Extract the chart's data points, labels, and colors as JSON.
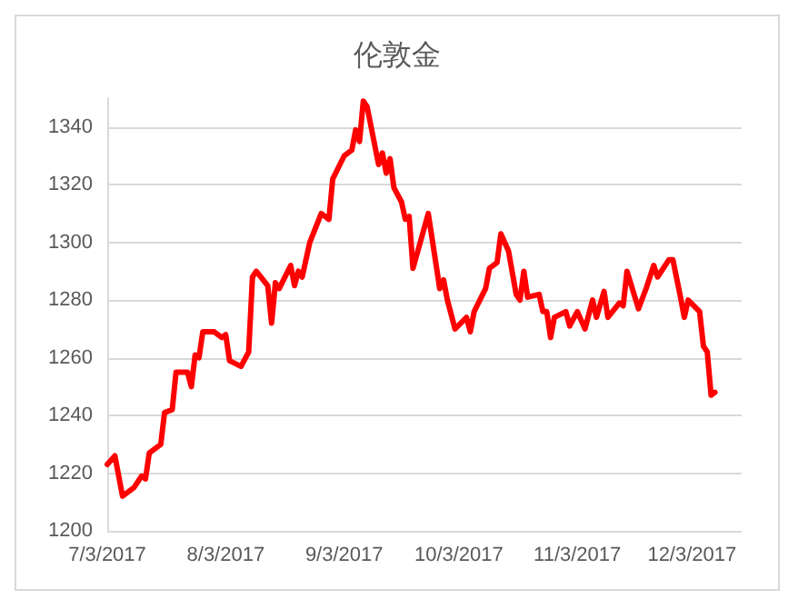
{
  "chart_data": {
    "type": "line",
    "title": "伦敦金",
    "x": [
      "2017-07-03",
      "2017-07-05",
      "2017-07-07",
      "2017-07-10",
      "2017-07-12",
      "2017-07-13",
      "2017-07-14",
      "2017-07-17",
      "2017-07-18",
      "2017-07-20",
      "2017-07-21",
      "2017-07-24",
      "2017-07-25",
      "2017-07-26",
      "2017-07-27",
      "2017-07-28",
      "2017-07-31",
      "2017-08-02",
      "2017-08-03",
      "2017-08-04",
      "2017-08-07",
      "2017-08-09",
      "2017-08-10",
      "2017-08-11",
      "2017-08-14",
      "2017-08-15",
      "2017-08-16",
      "2017-08-17",
      "2017-08-20",
      "2017-08-21",
      "2017-08-22",
      "2017-08-23",
      "2017-08-25",
      "2017-08-28",
      "2017-08-30",
      "2017-08-31",
      "2017-09-03",
      "2017-09-05",
      "2017-09-06",
      "2017-09-07",
      "2017-09-08",
      "2017-09-09",
      "2017-09-12",
      "2017-09-13",
      "2017-09-14",
      "2017-09-15",
      "2017-09-16",
      "2017-09-18",
      "2017-09-19",
      "2017-09-20",
      "2017-09-21",
      "2017-09-25",
      "2017-09-28",
      "2017-09-29",
      "2017-09-30",
      "2017-10-02",
      "2017-10-05",
      "2017-10-06",
      "2017-10-07",
      "2017-10-10",
      "2017-10-11",
      "2017-10-13",
      "2017-10-14",
      "2017-10-16",
      "2017-10-18",
      "2017-10-19",
      "2017-10-20",
      "2017-10-21",
      "2017-10-24",
      "2017-10-25",
      "2017-10-26",
      "2017-10-27",
      "2017-10-28",
      "2017-10-31",
      "2017-11-01",
      "2017-11-03",
      "2017-11-05",
      "2017-11-07",
      "2017-11-08",
      "2017-11-10",
      "2017-11-11",
      "2017-11-14",
      "2017-11-15",
      "2017-11-16",
      "2017-11-19",
      "2017-11-21",
      "2017-11-23",
      "2017-11-24",
      "2017-11-27",
      "2017-11-28",
      "2017-11-30",
      "2017-12-01",
      "2017-12-02",
      "2017-12-05",
      "2017-12-06",
      "2017-12-07",
      "2017-12-08",
      "2017-12-09"
    ],
    "series": [
      {
        "color": "#ff0000",
        "values": [
          1223,
          1226,
          1212,
          1215,
          1219,
          1218,
          1227,
          1230,
          1241,
          1242,
          1255,
          1255,
          1250,
          1261,
          1260,
          1269,
          1269,
          1267,
          1268,
          1259,
          1257,
          1262,
          1288,
          1290,
          1285,
          1272,
          1286,
          1284,
          1292,
          1285,
          1290,
          1288,
          1300,
          1310,
          1308,
          1322,
          1330,
          1332,
          1339,
          1335,
          1349,
          1347,
          1327,
          1331,
          1324,
          1329,
          1319,
          1314,
          1308,
          1309,
          1291,
          1310,
          1284,
          1287,
          1280,
          1270,
          1274,
          1269,
          1276,
          1284,
          1291,
          1293,
          1303,
          1297,
          1282,
          1280,
          1290,
          1281,
          1282,
          1276,
          1276,
          1267,
          1274,
          1276,
          1271,
          1276,
          1270,
          1280,
          1274,
          1283,
          1274,
          1279,
          1278,
          1290,
          1277,
          1284,
          1292,
          1288,
          1294,
          1294,
          1281,
          1274,
          1280,
          1276,
          1264,
          1262,
          1247,
          1248
        ]
      }
    ],
    "xlim": [
      "2017-07-03",
      "2017-12-16"
    ],
    "xticks": [
      {
        "value": "2017-07-03",
        "label": "7/3/2017"
      },
      {
        "value": "2017-08-03",
        "label": "8/3/2017"
      },
      {
        "value": "2017-09-03",
        "label": "9/3/2017"
      },
      {
        "value": "2017-10-03",
        "label": "10/3/2017"
      },
      {
        "value": "2017-11-03",
        "label": "11/3/2017"
      },
      {
        "value": "2017-12-03",
        "label": "12/3/2017"
      }
    ],
    "ylim": [
      1200,
      1350
    ],
    "yticks": [
      1200,
      1220,
      1240,
      1260,
      1280,
      1300,
      1320,
      1340
    ],
    "grid": "y",
    "marker": "none",
    "line_style": "solid"
  }
}
